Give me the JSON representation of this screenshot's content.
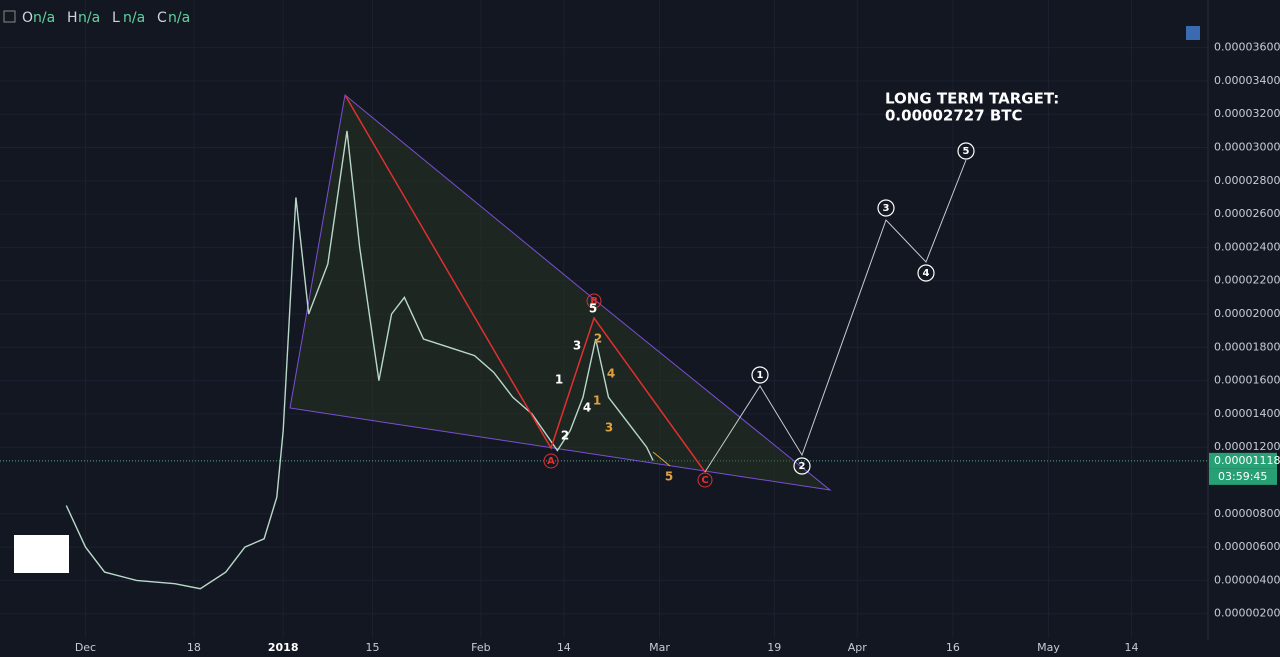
{
  "ohlc": [
    {
      "label": "O",
      "value": "n/a"
    },
    {
      "label": "H",
      "value": "n/a"
    },
    {
      "label": "L",
      "value": "n/a"
    },
    {
      "label": "C",
      "value": "n/a"
    }
  ],
  "chart_data": {
    "type": "line",
    "color": "#b8d8c8",
    "x": [
      -3,
      0,
      3,
      8,
      14,
      18,
      22,
      25,
      28,
      30,
      31,
      33,
      35,
      38,
      41,
      43,
      46,
      48,
      50,
      53,
      57,
      61,
      64,
      67,
      70,
      74,
      76,
      78,
      80,
      82,
      85,
      88,
      89
    ],
    "values": [
      8.5e-06,
      6e-06,
      4.5e-06,
      4e-06,
      3.8e-06,
      3.5e-06,
      4.5e-06,
      6e-06,
      6.5e-06,
      9e-06,
      1.3e-05,
      2.7e-05,
      2e-05,
      2.3e-05,
      3.1e-05,
      2.4e-05,
      1.6e-05,
      2e-05,
      2.1e-05,
      1.85e-05,
      1.8e-05,
      1.75e-05,
      1.65e-05,
      1.5e-05,
      1.4e-05,
      1.18e-05,
      1.3e-05,
      1.5e-05,
      1.85e-05,
      1.5e-05,
      1.35e-05,
      1.2e-05,
      1.12e-05
    ],
    "xlim": [
      -13.4,
      176
    ],
    "xticks": [
      {
        "value": 0,
        "label": "Dec"
      },
      {
        "value": 17,
        "label": "18"
      },
      {
        "value": 31,
        "label": "2018"
      },
      {
        "value": 45,
        "label": "15"
      },
      {
        "value": 62,
        "label": "Feb"
      },
      {
        "value": 75,
        "label": "14"
      },
      {
        "value": 90,
        "label": "Mar"
      },
      {
        "value": 108,
        "label": "19"
      },
      {
        "value": 121,
        "label": "Apr"
      },
      {
        "value": 136,
        "label": "16"
      },
      {
        "value": 151,
        "label": "May"
      },
      {
        "value": 164,
        "label": "14"
      }
    ],
    "ylim": [
      0,
      3.886e-05
    ],
    "yticks": [
      {
        "value": 2e-06,
        "label": "0.00000200"
      },
      {
        "value": 4e-06,
        "label": "0.00000400"
      },
      {
        "value": 6e-06,
        "label": "0.00000600"
      },
      {
        "value": 8e-06,
        "label": "0.00000800"
      },
      {
        "value": 1.2e-05,
        "label": "0.00001200"
      },
      {
        "value": 1.4e-05,
        "label": "0.00001400"
      },
      {
        "value": 1.6e-05,
        "label": "0.00001600"
      },
      {
        "value": 1.8e-05,
        "label": "0.00001800"
      },
      {
        "value": 2e-05,
        "label": "0.00002000"
      },
      {
        "value": 2.2e-05,
        "label": "0.00002200"
      },
      {
        "value": 2.4e-05,
        "label": "0.00002400"
      },
      {
        "value": 2.6e-05,
        "label": "0.00002600"
      },
      {
        "value": 2.8e-05,
        "label": "0.00002800"
      },
      {
        "value": 3e-05,
        "label": "0.00003000"
      },
      {
        "value": 3.2e-05,
        "label": "0.00003200"
      },
      {
        "value": 3.4e-05,
        "label": "0.00003400"
      },
      {
        "value": 3.6e-05,
        "label": "0.00003600"
      }
    ],
    "last_price": {
      "value": 1.118e-05,
      "label": "0.00001118"
    },
    "countdown": "03:59:45",
    "annotations": {
      "target": [
        "LONG TERM TARGET:",
        "0.00002727 BTC"
      ],
      "abc": [
        "A",
        "B",
        "C"
      ],
      "white_waves": [
        "1",
        "2",
        "3",
        "4",
        "5"
      ],
      "orange_waves": [
        "1",
        "2",
        "3",
        "4",
        "5"
      ],
      "projection": [
        "1",
        "2",
        "3",
        "4",
        "5"
      ]
    }
  }
}
